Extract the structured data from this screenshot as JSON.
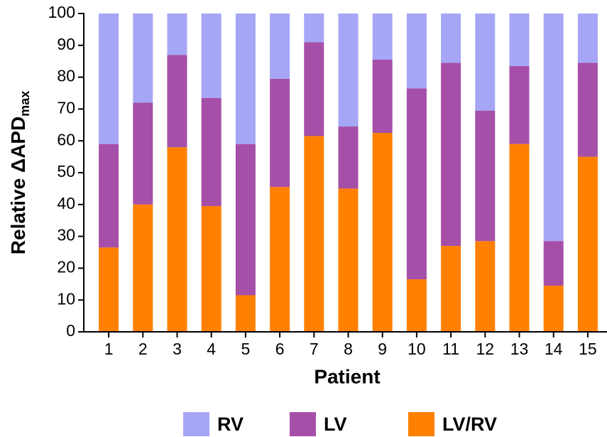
{
  "chart_data": {
    "type": "stacked_bar",
    "ylabel": "Relative ΔAPD",
    "ylabel_sub": "max",
    "xlabel": "Patient",
    "categories": [
      "1",
      "2",
      "3",
      "4",
      "5",
      "6",
      "7",
      "8",
      "9",
      "10",
      "11",
      "12",
      "13",
      "14",
      "15"
    ],
    "series": [
      {
        "name": "RV",
        "color": "#a5a6f6",
        "values": [
          41,
          28,
          13,
          26.5,
          41,
          20.5,
          9,
          35.5,
          14.5,
          23.5,
          15.5,
          30.5,
          16.5,
          71.5,
          15.5
        ]
      },
      {
        "name": "LV",
        "color": "#a64fa8",
        "values": [
          32.5,
          32,
          29,
          34,
          47.5,
          34,
          29.5,
          19.5,
          23,
          60,
          57.5,
          41,
          24.5,
          14,
          29.5
        ]
      },
      {
        "name": "LV/RV",
        "color": "#ff8000",
        "values": [
          26.5,
          40,
          58,
          39.5,
          11.5,
          45.5,
          61.5,
          45,
          62.5,
          16.5,
          27,
          28.5,
          59,
          14.5,
          55
        ]
      }
    ],
    "stack_order": [
      "LV/RV",
      "LV",
      "RV"
    ],
    "ylim": [
      0,
      100
    ],
    "yticks": [
      0,
      10,
      20,
      30,
      40,
      50,
      60,
      70,
      80,
      90,
      100
    ],
    "legend": "bottom"
  }
}
